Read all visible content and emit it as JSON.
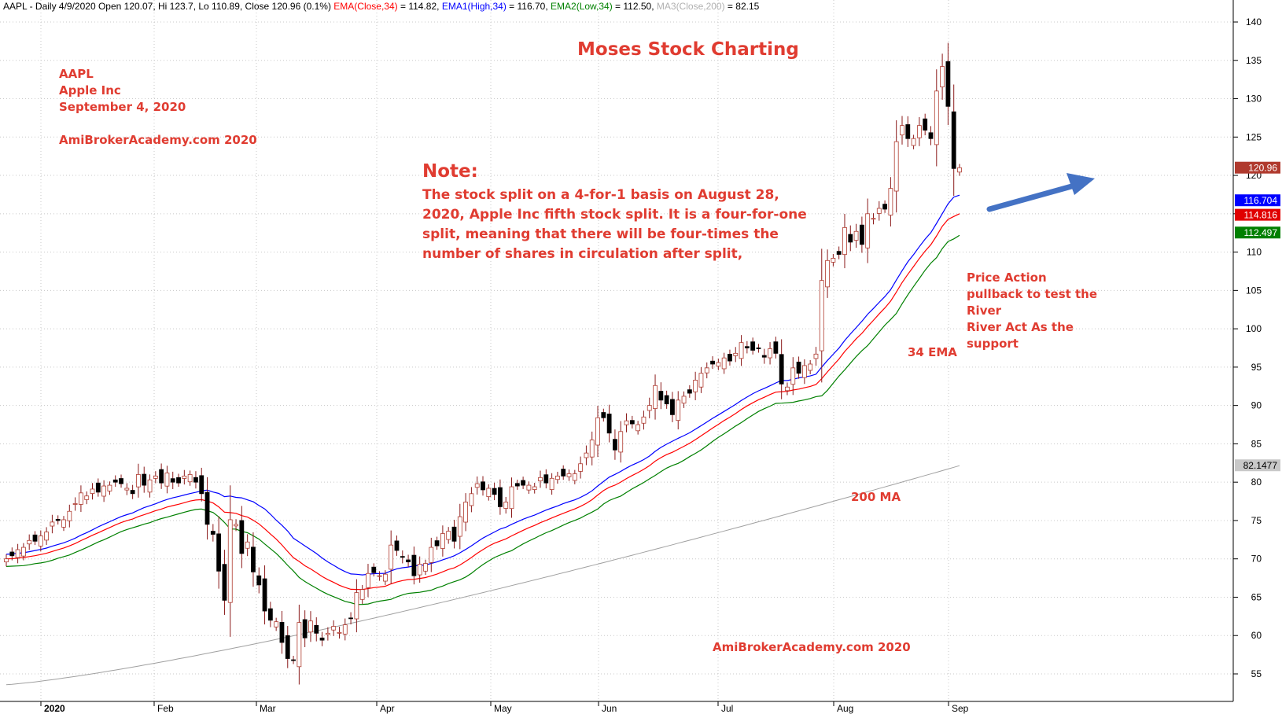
{
  "header": {
    "symbol_line": "AAPL - Daily 4/9/2020 Open 120.07, Hi 123.7, Lo 110.89, Close 120.96 (0.1%)",
    "ema_close": "EMA(Close,34)",
    "ema_close_val": " = 114.82,",
    "ema_high": "EMA1(High,34)",
    "ema_high_val": " = 116.70,",
    "ema_low": "EMA2(Low,34)",
    "ema_low_val": " = 112.50,",
    "ma": "MA3(Close,200)",
    "ma_val": " = 82.15"
  },
  "annotations": {
    "title": "Moses Stock Charting",
    "ticker": "AAPL",
    "company": "Apple Inc",
    "date": "September 4, 2020",
    "site": "AmiBrokerAcademy.com  2020",
    "note_heading": "Note:",
    "note_lines": [
      "The stock split on a 4-for-1 basis on August 28,",
      "2020, Apple Inc fifth stock split. It is a four-for-one",
      "split, meaning that there will be four-times the",
      "number of shares in circulation after split,"
    ],
    "price_action_lines": [
      "Price Action",
      "pullback to test the",
      "River",
      "River Act As the",
      "support"
    ],
    "ema_label": "34 EMA",
    "ma_label": "200 MA",
    "footer_site": "AmiBrokerAcademy.com 2020"
  },
  "colors": {
    "ema_close": "#ff0000",
    "ema_high": "#0000ff",
    "ema_low": "#008000",
    "ma200": "#a0a0a0",
    "annotation": "#e03c31",
    "up_candle": "#ffffff",
    "down_candle": "#000000",
    "arrow": "#4472c4"
  },
  "chart_data": {
    "type": "candlestick",
    "title": "",
    "ylim": [
      52,
      142
    ],
    "y_ticks": [
      55,
      60,
      65,
      70,
      75,
      80,
      85,
      90,
      95,
      100,
      105,
      110,
      115,
      120,
      125,
      130,
      135,
      140
    ],
    "x_months": [
      "2020",
      "Feb",
      "Mar",
      "Apr",
      "May",
      "Jun",
      "Jul",
      "Aug",
      "Sep"
    ],
    "grid": true,
    "price_badges": [
      {
        "value": "120.96",
        "color": "#b03a2e"
      },
      {
        "value": "116.704",
        "color": "#0000ff"
      },
      {
        "value": "114.816",
        "color": "#e00000"
      },
      {
        "value": "112.497",
        "color": "#008000"
      },
      {
        "value": "82.1477",
        "color": "#c8c8c8"
      }
    ],
    "closes": [
      70.0,
      70.4,
      71.2,
      71.5,
      72.4,
      72.3,
      73.0,
      73.5,
      74.8,
      75.0,
      75.1,
      76.2,
      77.2,
      78.6,
      78.2,
      79.1,
      78.7,
      79.5,
      79.6,
      80.0,
      79.8,
      79.2,
      78.5,
      81.0,
      79.6,
      80.3,
      80.8,
      79.9,
      81.2,
      80.0,
      79.9,
      80.8,
      81.0,
      80.0,
      78.5,
      74.5,
      73.2,
      68.4,
      64.6,
      75.1,
      74.5,
      70.7,
      72.2,
      68.3,
      66.6,
      63.2,
      62.0,
      61.8,
      59.1,
      57.0,
      56.8,
      61.7,
      59.7,
      61.9,
      60.3,
      59.4,
      60.3,
      61.2,
      60.4,
      61.4,
      62.2,
      65.6,
      66.0,
      68.1,
      68.2,
      67.8,
      68.0,
      71.8,
      71.1,
      70.2,
      69.6,
      67.8,
      69.3,
      69.4,
      71.5,
      71.7,
      73.3,
      73.6,
      72.3,
      75.5,
      77.4,
      78.5,
      79.8,
      79.0,
      79.2,
      78.4,
      76.8,
      77.4,
      79.4,
      79.5,
      79.6,
      79.6,
      79.4,
      80.6,
      79.9,
      80.5,
      80.8,
      80.8,
      81.1,
      81.1,
      82.4,
      83.8,
      85.5,
      88.4,
      88.4,
      86.4,
      84.2,
      86.6,
      88.0,
      87.6,
      87.5,
      88.5,
      90.0,
      92.6,
      90.7,
      90.2,
      88.8,
      90.7,
      91.2,
      91.6,
      93.3,
      94.2,
      94.9,
      95.4,
      95.6,
      96.2,
      95.8,
      96.8,
      98.2,
      97.5,
      97.2,
      97.4,
      96.3,
      97.4,
      96.8,
      92.8,
      92.4,
      94.9,
      94.2,
      95.2,
      95.4,
      96.7,
      106.3,
      108.9,
      109.2,
      109.7,
      113.2,
      111.3,
      112.7,
      111.0,
      115.0,
      114.4,
      115.7,
      115.6,
      118.3,
      124.4,
      126.5,
      124.8,
      124.8,
      126.5,
      125.9,
      124.8,
      131.0,
      134.2,
      129.0,
      120.9,
      121.0
    ]
  }
}
